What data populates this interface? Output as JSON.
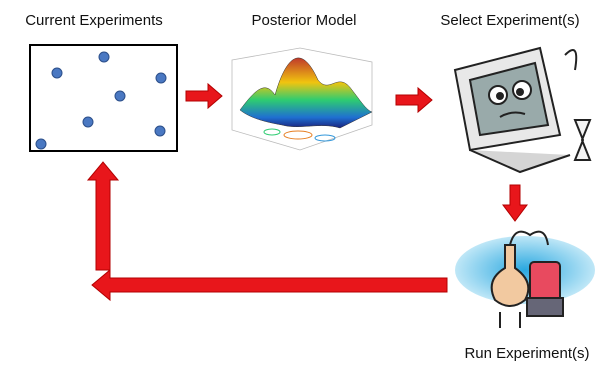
{
  "nodes": [
    {
      "label": "Current Experiments"
    },
    {
      "label": "Posterior Model"
    },
    {
      "label": "Select Experiment(s)"
    },
    {
      "label": "Run Experiment(s)"
    }
  ]
}
